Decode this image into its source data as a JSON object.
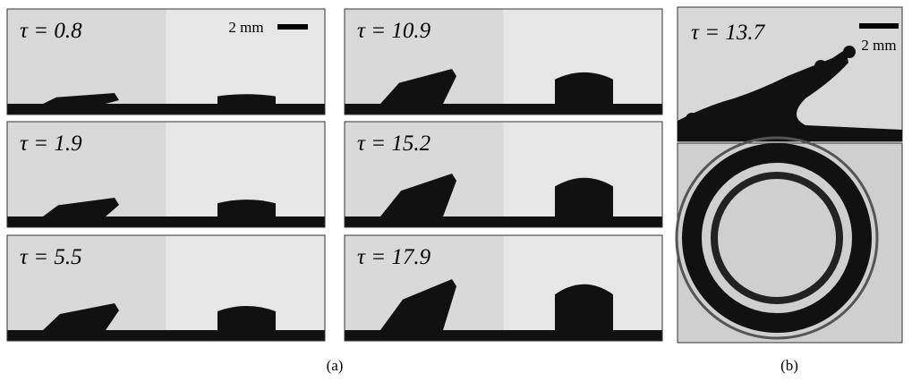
{
  "panels_a": [
    {
      "label": "τ = 0.8"
    },
    {
      "label": "τ = 1.9"
    },
    {
      "label": "τ = 5.5"
    },
    {
      "label": "τ = 10.9"
    },
    {
      "label": "τ = 15.2"
    },
    {
      "label": "τ = 17.9"
    }
  ],
  "scale_a": "2 mm",
  "panel_b": {
    "label": "τ = 13.7",
    "scale": "2 mm"
  },
  "captions": {
    "a": "(a)",
    "b": "(b)"
  }
}
